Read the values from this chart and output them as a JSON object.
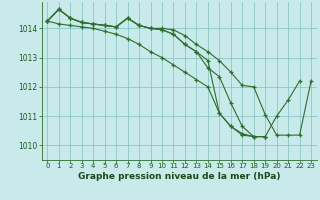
{
  "background_color": "#c8eaea",
  "grid_color": "#7fbfbf",
  "line_color": "#2d6e2d",
  "title": "Graphe pression niveau de la mer (hPa)",
  "xlim": [
    -0.5,
    23.5
  ],
  "ylim": [
    1009.5,
    1014.9
  ],
  "yticks": [
    1010,
    1011,
    1012,
    1013,
    1014
  ],
  "xticks": [
    0,
    1,
    2,
    3,
    4,
    5,
    6,
    7,
    8,
    9,
    10,
    11,
    12,
    13,
    14,
    15,
    16,
    17,
    18,
    19,
    20,
    21,
    22,
    23
  ],
  "series": [
    {
      "x": [
        0,
        1,
        2,
        3,
        4,
        5,
        6,
        7,
        8,
        9,
        10,
        11,
        12,
        13,
        14,
        15,
        16,
        17,
        18,
        19,
        20,
        21,
        22,
        23
      ],
      "y": [
        1014.25,
        1014.65,
        1014.35,
        1014.2,
        1014.15,
        1014.1,
        1014.05,
        1014.35,
        1014.1,
        1014.0,
        1014.0,
        1013.95,
        1013.75,
        1013.45,
        1013.2,
        1012.9,
        1012.5,
        1012.05,
        1012.0,
        1011.05,
        1010.35,
        1010.35,
        1010.35,
        1012.2
      ]
    },
    {
      "x": [
        0,
        1,
        2,
        3,
        4,
        5,
        6,
        7,
        8,
        9,
        10,
        11,
        12,
        13,
        14,
        15,
        16,
        17,
        18,
        19,
        20,
        21,
        22
      ],
      "y": [
        1014.25,
        1014.15,
        1014.1,
        1014.05,
        1014.0,
        1013.9,
        1013.8,
        1013.65,
        1013.45,
        1013.2,
        1013.0,
        1012.75,
        1012.5,
        1012.25,
        1012.0,
        1011.1,
        1010.65,
        1010.35,
        1010.3,
        1010.3,
        1011.0,
        1011.55,
        1012.2
      ]
    },
    {
      "x": [
        0,
        1,
        2,
        3,
        4,
        5,
        6,
        7,
        8,
        9,
        10,
        11,
        12,
        13,
        14,
        15,
        16,
        17,
        18,
        19
      ],
      "y": [
        1014.25,
        1014.65,
        1014.35,
        1014.2,
        1014.15,
        1014.1,
        1014.05,
        1014.35,
        1014.1,
        1014.0,
        1013.95,
        1013.8,
        1013.45,
        1013.2,
        1012.9,
        1011.1,
        1010.65,
        1010.4,
        1010.3,
        1010.3
      ]
    },
    {
      "x": [
        0,
        1,
        2,
        3,
        4,
        5,
        6,
        7,
        8,
        9,
        10,
        11,
        12,
        13,
        14,
        15,
        16,
        17,
        18,
        19
      ],
      "y": [
        1014.25,
        1014.65,
        1014.35,
        1014.2,
        1014.15,
        1014.1,
        1014.05,
        1014.35,
        1014.1,
        1014.0,
        1013.95,
        1013.8,
        1013.45,
        1013.2,
        1012.65,
        1012.35,
        1011.45,
        1010.65,
        1010.3,
        1010.3
      ]
    }
  ]
}
